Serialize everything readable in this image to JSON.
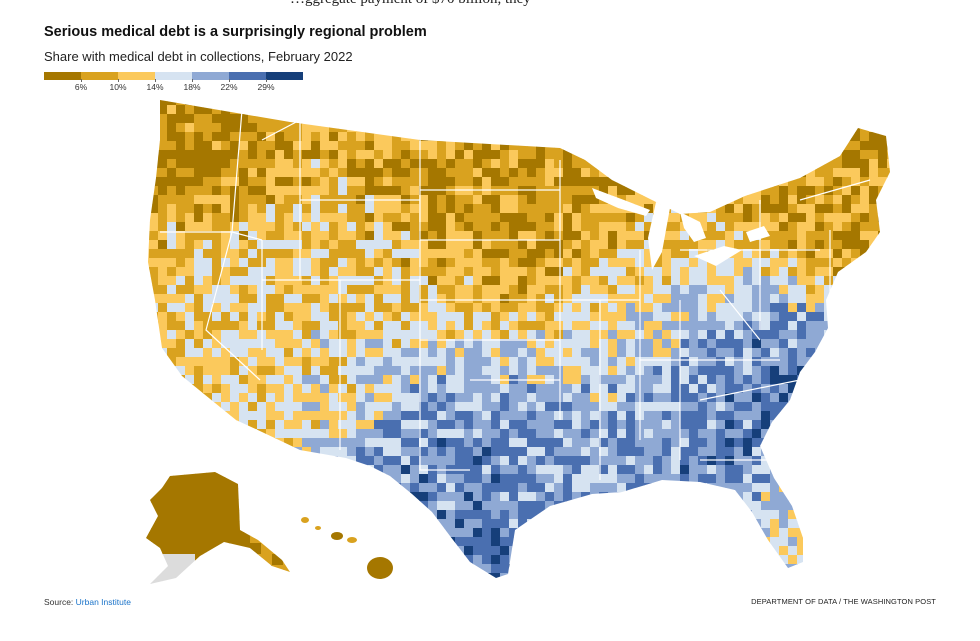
{
  "header": {
    "cut_text": "…ggregate payment of $70 billion, they",
    "title": "Serious medical debt is a surprisingly regional problem",
    "subtitle": "Share with medical debt in collections, February 2022"
  },
  "legend": {
    "colors": [
      "#a57700",
      "#d9a21f",
      "#fbc95c",
      "#d6e3f1",
      "#8fa9d4",
      "#4a6fb0",
      "#163f7a"
    ],
    "ticks": [
      "6%",
      "10%",
      "14%",
      "18%",
      "22%",
      "29%"
    ]
  },
  "map": {
    "type": "choropleth",
    "geography": "U.S. counties",
    "state_borders": "white",
    "dominant_by_region": {
      "northwest_and_northern_plains": "6% and below (dark gold)",
      "california_nevada_southwest": "10%–14% (gold / light gold)",
      "south_and_texas": "18%–29%+ (blue to dark navy)",
      "carolinas_and_georgia": "22%–29%+ (navy)",
      "northeast": "6%–10% (gold)"
    }
  },
  "footer": {
    "source_label": "Source:",
    "source_link": "Urban Institute",
    "credit": "DEPARTMENT OF DATA / THE WASHINGTON POST"
  }
}
